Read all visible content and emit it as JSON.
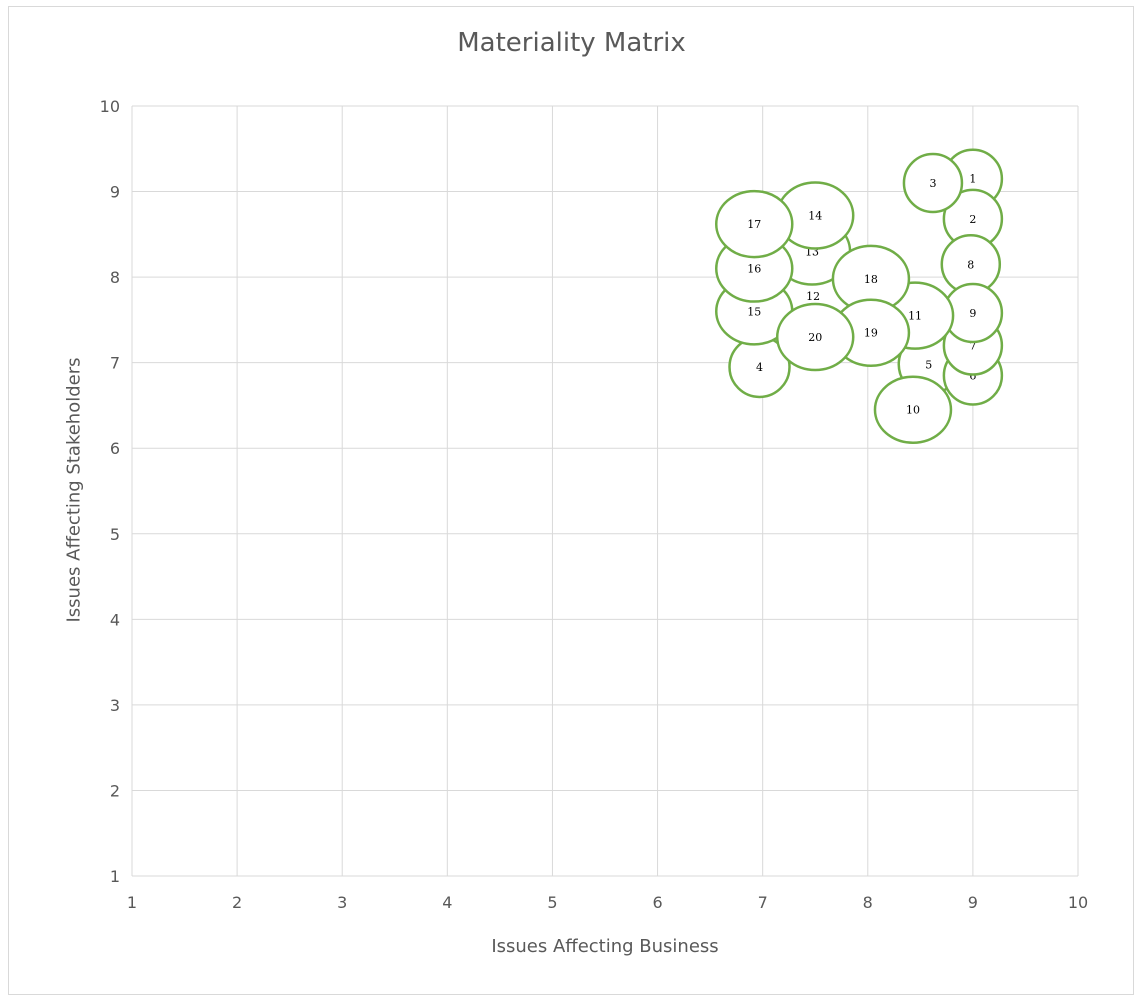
{
  "chart_data": {
    "type": "scatter",
    "title": "Materiality Matrix",
    "xlabel": "Issues Affecting Business",
    "ylabel": "Issues Affecting Stakeholders",
    "xlim": [
      1,
      10
    ],
    "ylim": [
      1,
      10
    ],
    "xticks": [
      "1",
      "2",
      "3",
      "4",
      "5",
      "6",
      "7",
      "8",
      "9",
      "10"
    ],
    "yticks": [
      "1",
      "2",
      "3",
      "4",
      "5",
      "6",
      "7",
      "8",
      "9",
      "10"
    ],
    "grid": true,
    "marker": {
      "fill": "#ffffff",
      "stroke": "#70ad47"
    },
    "points": [
      {
        "label": "1",
        "x": 9.0,
        "y": 9.15
      },
      {
        "label": "2",
        "x": 9.0,
        "y": 8.68
      },
      {
        "label": "3",
        "x": 8.62,
        "y": 9.1
      },
      {
        "label": "4",
        "x": 6.97,
        "y": 6.95
      },
      {
        "label": "5",
        "x": 8.58,
        "y": 6.98
      },
      {
        "label": "6",
        "x": 9.0,
        "y": 6.85
      },
      {
        "label": "7",
        "x": 9.0,
        "y": 7.2
      },
      {
        "label": "8",
        "x": 8.98,
        "y": 8.15
      },
      {
        "label": "9",
        "x": 9.0,
        "y": 7.58
      },
      {
        "label": "10",
        "x": 8.43,
        "y": 6.45
      },
      {
        "label": "11",
        "x": 8.45,
        "y": 7.55
      },
      {
        "label": "12",
        "x": 7.48,
        "y": 7.78
      },
      {
        "label": "13",
        "x": 7.47,
        "y": 8.3
      },
      {
        "label": "14",
        "x": 7.5,
        "y": 8.72
      },
      {
        "label": "15",
        "x": 6.92,
        "y": 7.6
      },
      {
        "label": "16",
        "x": 6.92,
        "y": 8.1
      },
      {
        "label": "17",
        "x": 6.92,
        "y": 8.62
      },
      {
        "label": "18",
        "x": 8.03,
        "y": 7.98
      },
      {
        "label": "19",
        "x": 8.03,
        "y": 7.35
      },
      {
        "label": "20",
        "x": 7.5,
        "y": 7.3
      }
    ]
  }
}
